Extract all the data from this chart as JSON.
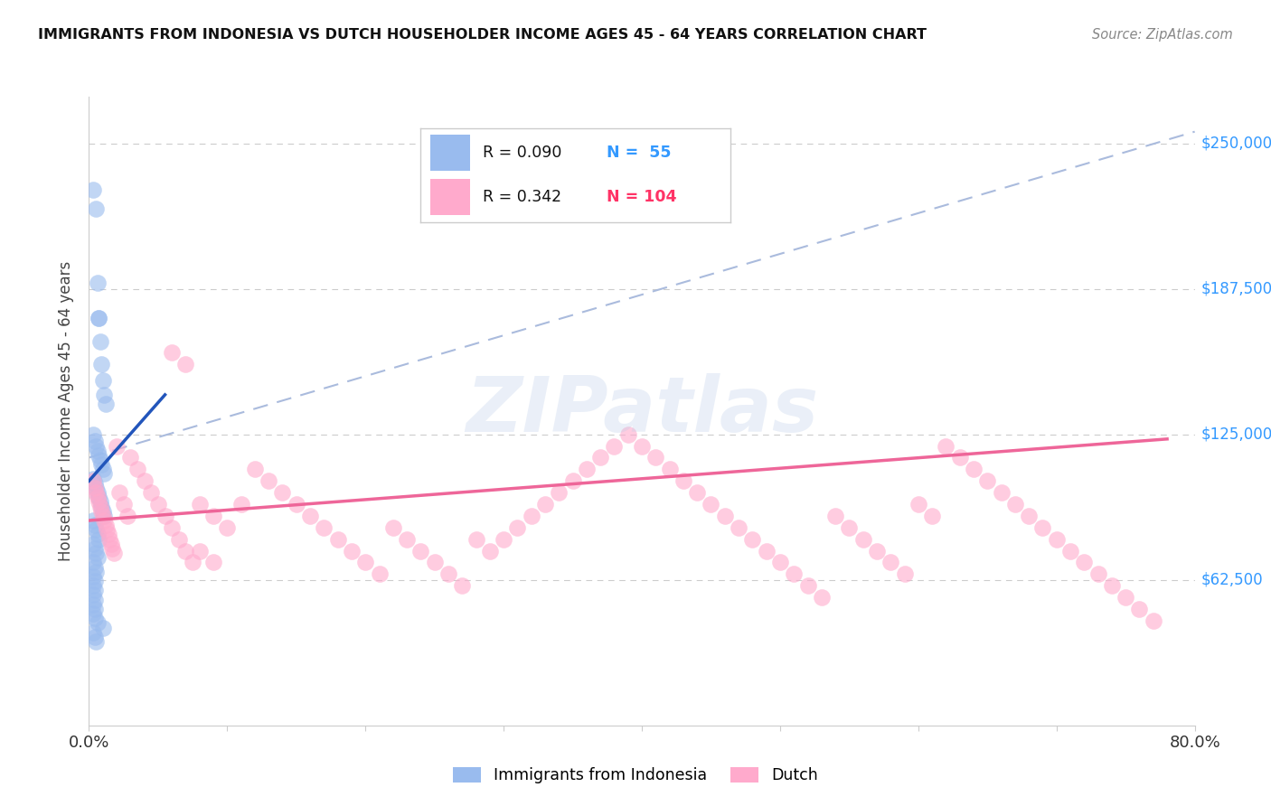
{
  "title": "IMMIGRANTS FROM INDONESIA VS DUTCH HOUSEHOLDER INCOME AGES 45 - 64 YEARS CORRELATION CHART",
  "source": "Source: ZipAtlas.com",
  "ylabel": "Householder Income Ages 45 - 64 years",
  "xlim": [
    0.0,
    0.8
  ],
  "ylim": [
    0,
    270000
  ],
  "color_blue": "#99BBEE",
  "color_pink": "#FFAACC",
  "color_blue_line": "#2255BB",
  "color_pink_line": "#EE6699",
  "color_dashed": "#AABBDD",
  "watermark_text": "ZIPatlas",
  "watermark_color": "#AABBDD",
  "legend_r1": "R = 0.090",
  "legend_n1": "N =  55",
  "legend_r2": "R = 0.342",
  "legend_n2": "N = 104",
  "legend_color_r": "#000000",
  "legend_color_n": "#3399FF",
  "legend_color_n2": "#FF3377",
  "blue_x": [
    0.003,
    0.005,
    0.006,
    0.007,
    0.008,
    0.009,
    0.01,
    0.011,
    0.012,
    0.003,
    0.004,
    0.005,
    0.006,
    0.007,
    0.008,
    0.009,
    0.01,
    0.011,
    0.003,
    0.004,
    0.005,
    0.006,
    0.007,
    0.008,
    0.009,
    0.01,
    0.011,
    0.003,
    0.004,
    0.005,
    0.006,
    0.007,
    0.003,
    0.004,
    0.005,
    0.006,
    0.003,
    0.004,
    0.005,
    0.003,
    0.004,
    0.003,
    0.004,
    0.003,
    0.004,
    0.003,
    0.004,
    0.003,
    0.007,
    0.004,
    0.006,
    0.01,
    0.003,
    0.004,
    0.005
  ],
  "blue_y": [
    230000,
    222000,
    190000,
    175000,
    165000,
    155000,
    148000,
    142000,
    138000,
    125000,
    122000,
    120000,
    118000,
    116000,
    114000,
    112000,
    110000,
    108000,
    106000,
    104000,
    102000,
    100000,
    98000,
    96000,
    94000,
    92000,
    90000,
    88000,
    86000,
    84000,
    82000,
    80000,
    78000,
    76000,
    74000,
    72000,
    70000,
    68000,
    66000,
    64000,
    62000,
    60000,
    58000,
    56000,
    54000,
    52000,
    50000,
    48000,
    175000,
    46000,
    44000,
    42000,
    40000,
    38000,
    36000
  ],
  "pink_x": [
    0.003,
    0.004,
    0.005,
    0.006,
    0.007,
    0.008,
    0.009,
    0.01,
    0.011,
    0.012,
    0.013,
    0.014,
    0.015,
    0.016,
    0.017,
    0.018,
    0.02,
    0.022,
    0.025,
    0.028,
    0.03,
    0.035,
    0.04,
    0.045,
    0.05,
    0.055,
    0.06,
    0.065,
    0.07,
    0.075,
    0.08,
    0.09,
    0.1,
    0.11,
    0.12,
    0.13,
    0.14,
    0.15,
    0.16,
    0.17,
    0.18,
    0.19,
    0.2,
    0.21,
    0.22,
    0.23,
    0.24,
    0.25,
    0.26,
    0.27,
    0.28,
    0.29,
    0.3,
    0.31,
    0.32,
    0.33,
    0.34,
    0.35,
    0.36,
    0.37,
    0.38,
    0.39,
    0.4,
    0.41,
    0.42,
    0.43,
    0.44,
    0.45,
    0.46,
    0.47,
    0.48,
    0.49,
    0.5,
    0.51,
    0.52,
    0.53,
    0.54,
    0.55,
    0.56,
    0.57,
    0.58,
    0.59,
    0.6,
    0.61,
    0.62,
    0.63,
    0.64,
    0.65,
    0.66,
    0.67,
    0.68,
    0.69,
    0.7,
    0.71,
    0.72,
    0.73,
    0.74,
    0.75,
    0.76,
    0.77,
    0.06,
    0.07,
    0.08,
    0.09
  ],
  "pink_y": [
    105000,
    102000,
    100000,
    98000,
    96000,
    94000,
    92000,
    90000,
    88000,
    86000,
    84000,
    82000,
    80000,
    78000,
    76000,
    74000,
    120000,
    100000,
    95000,
    90000,
    115000,
    110000,
    105000,
    100000,
    95000,
    90000,
    85000,
    80000,
    75000,
    70000,
    95000,
    90000,
    85000,
    95000,
    110000,
    105000,
    100000,
    95000,
    90000,
    85000,
    80000,
    75000,
    70000,
    65000,
    85000,
    80000,
    75000,
    70000,
    65000,
    60000,
    80000,
    75000,
    80000,
    85000,
    90000,
    95000,
    100000,
    105000,
    110000,
    115000,
    120000,
    125000,
    120000,
    115000,
    110000,
    105000,
    100000,
    95000,
    90000,
    85000,
    80000,
    75000,
    70000,
    65000,
    60000,
    55000,
    90000,
    85000,
    80000,
    75000,
    70000,
    65000,
    95000,
    90000,
    120000,
    115000,
    110000,
    105000,
    100000,
    95000,
    90000,
    85000,
    80000,
    75000,
    70000,
    65000,
    60000,
    55000,
    50000,
    45000,
    160000,
    155000,
    75000,
    70000
  ]
}
